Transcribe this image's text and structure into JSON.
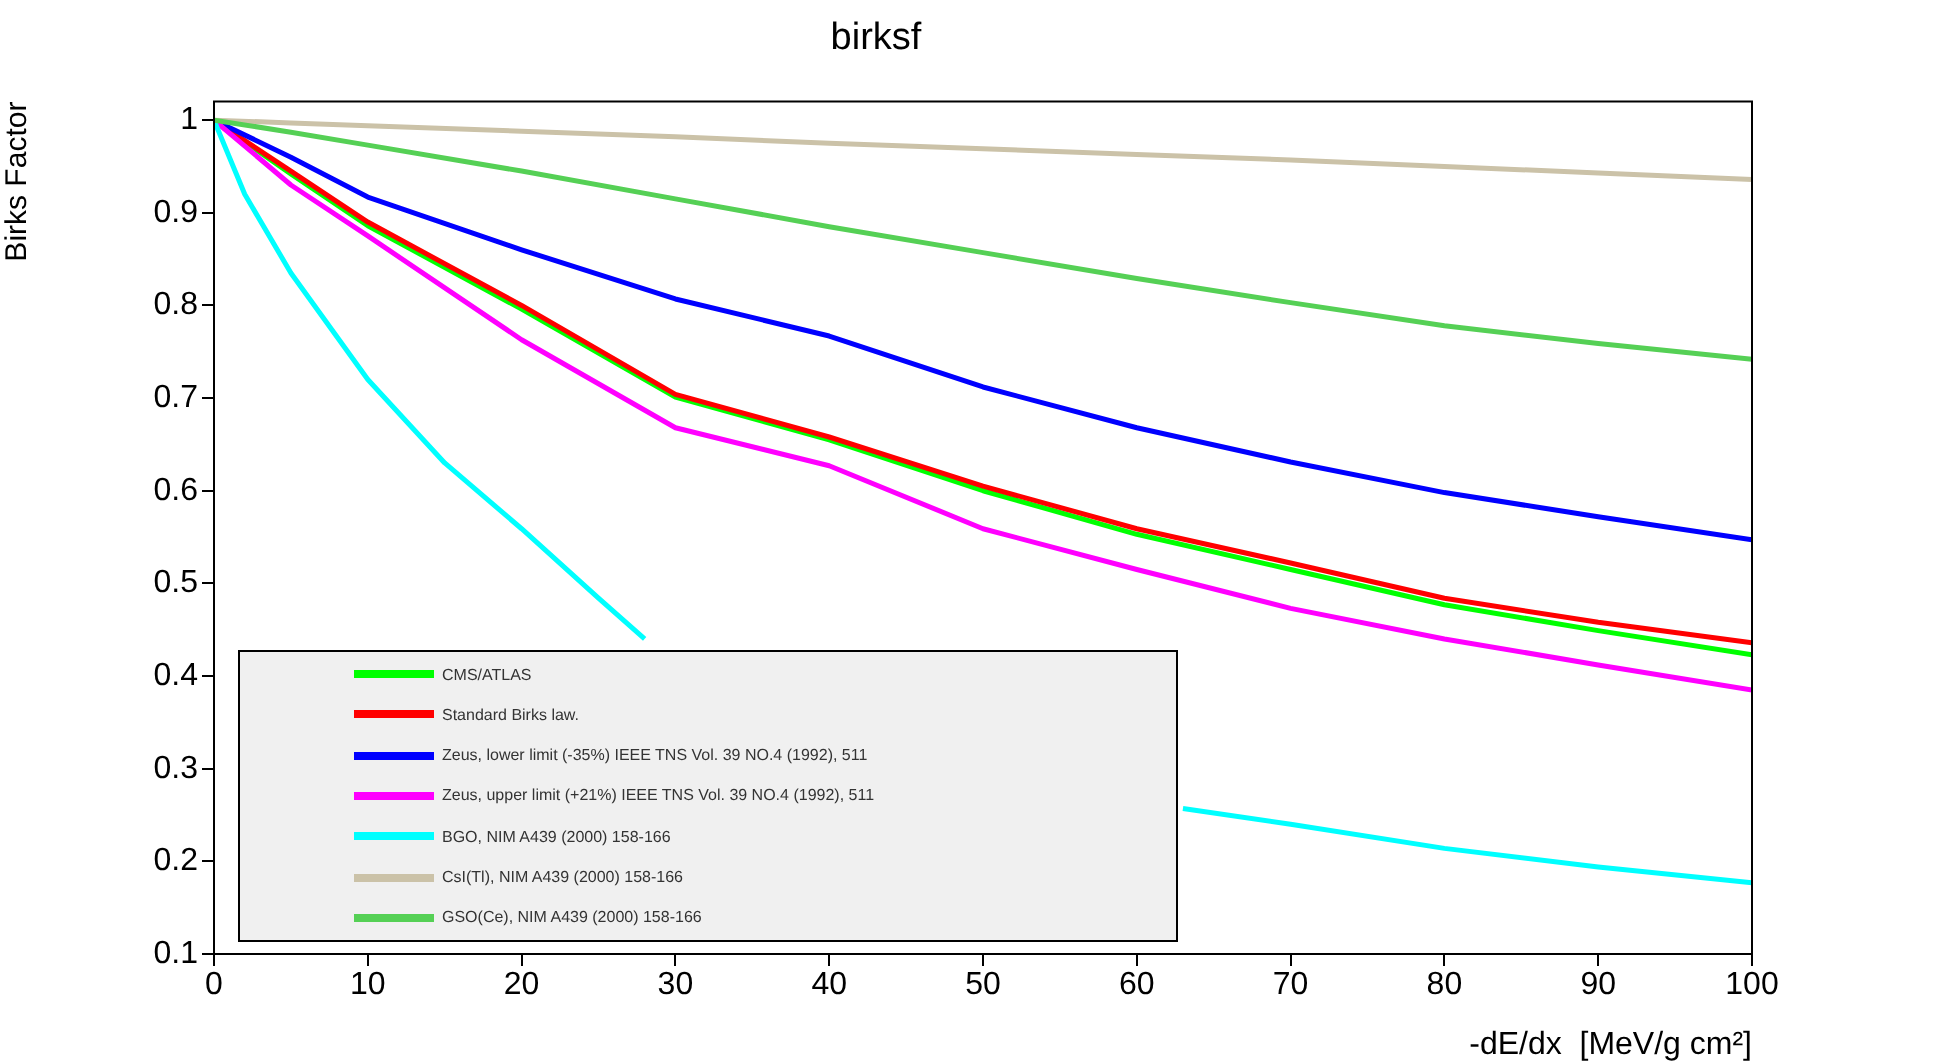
{
  "chart_data": {
    "type": "line",
    "title": "birksf",
    "xlabel": "-dE/dx  [MeV/g cm²]",
    "ylabel": "Birks Factor",
    "x": [
      0,
      5,
      10,
      20,
      30,
      40,
      50,
      60,
      70,
      80,
      90,
      100
    ],
    "series": [
      {
        "name": "CMS/ATLAS",
        "color": "#00ff00",
        "values": [
          1,
          0.942,
          0.886,
          0.796,
          0.701,
          0.655,
          0.6,
          0.553,
          0.515,
          0.477,
          0.449,
          0.423
        ]
      },
      {
        "name": "Standard Birks law.",
        "color": "#ff0000",
        "values": [
          1,
          0.945,
          0.89,
          0.8,
          0.704,
          0.658,
          0.605,
          0.559,
          0.522,
          0.484,
          0.458,
          0.436
        ]
      },
      {
        "name": "Zeus, lower limit (-35%) IEEE TNS Vol. 39 NO.4 (1992), 511",
        "color": "#0000ff",
        "values": [
          1,
          0.96,
          0.917,
          0.86,
          0.807,
          0.767,
          0.712,
          0.668,
          0.631,
          0.598,
          0.572,
          0.547
        ]
      },
      {
        "name": "Zeus, upper limit (+21%) IEEE TNS Vol. 39 NO.4 (1992), 511",
        "color": "#ff00ff",
        "values": [
          1,
          0.93,
          0.875,
          0.763,
          0.668,
          0.627,
          0.559,
          0.515,
          0.473,
          0.44,
          0.412,
          0.385
        ]
      },
      {
        "name": "BGO, NIM A439 (2000) 158-166",
        "color": "#00ffff",
        "x": [
          0,
          2,
          5,
          10,
          15,
          20,
          25,
          28,
          45,
          63,
          70,
          80,
          90,
          100
        ],
        "values": [
          1,
          0.92,
          0.835,
          0.72,
          0.63,
          0.559,
          0.484,
          0.44,
          null,
          0.257,
          0.24,
          0.214,
          0.194,
          0.177
        ]
      },
      {
        "name": "CsI(Tl), NIM A439 (2000) 158-166",
        "color": "#cbc2a8",
        "values": [
          1,
          0.997,
          0.994,
          0.988,
          0.982,
          0.975,
          0.969,
          0.963,
          0.957,
          0.95,
          0.943,
          0.936
        ]
      },
      {
        "name": "GSO(Ce), NIM A439 (2000) 158-166",
        "color": "#55d055",
        "values": [
          1,
          0.987,
          0.973,
          0.945,
          0.915,
          0.885,
          0.857,
          0.829,
          0.803,
          0.778,
          0.759,
          0.742
        ]
      }
    ],
    "xlim": [
      0,
      100
    ],
    "xticks": [
      0,
      10,
      20,
      30,
      40,
      50,
      60,
      70,
      80,
      90,
      100
    ],
    "ylim": [
      0.1,
      1.02
    ],
    "yticks": [
      0.1,
      0.2,
      0.3,
      0.4,
      0.5,
      0.6,
      0.7,
      0.8,
      0.9,
      1
    ],
    "grid": false,
    "legend": "bottom left",
    "marker": "none",
    "line_style": "solid"
  }
}
